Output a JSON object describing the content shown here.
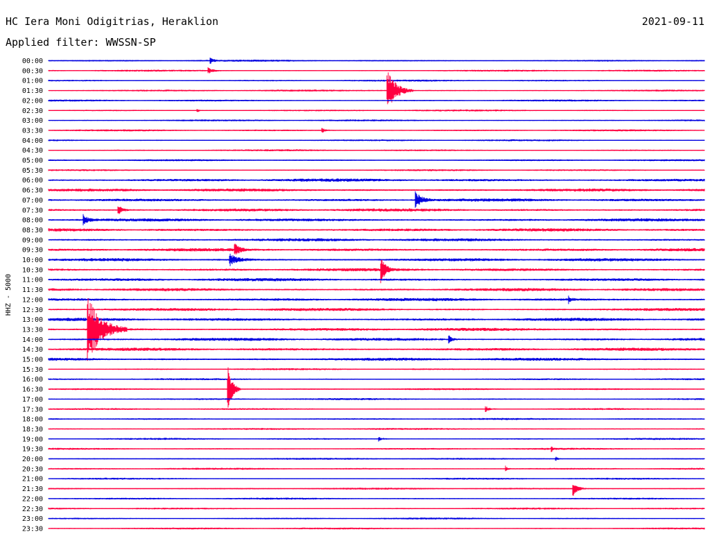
{
  "header": {
    "station": "HC Iera Moni Odigitrias, Heraklion",
    "date": "2021-09-11",
    "filter": "Applied filter: WWSSN-SP"
  },
  "colors": {
    "trace_even": "#0000e0",
    "trace_odd": "#ff0040",
    "background": "#ffffff",
    "text": "#000000"
  },
  "chart_data": {
    "type": "helicorder",
    "ylabel": "HHZ - 5000",
    "rows": [
      "00:00",
      "00:30",
      "01:00",
      "01:30",
      "02:00",
      "02:30",
      "03:00",
      "03:30",
      "04:00",
      "04:30",
      "05:00",
      "05:30",
      "06:00",
      "06:30",
      "07:00",
      "07:30",
      "08:00",
      "08:30",
      "09:00",
      "09:30",
      "10:00",
      "10:30",
      "11:00",
      "11:30",
      "12:00",
      "12:30",
      "13:00",
      "13:30",
      "14:00",
      "14:30",
      "15:00",
      "15:30",
      "16:00",
      "16:30",
      "17:00",
      "17:30",
      "18:00",
      "18:30",
      "19:00",
      "19:30",
      "20:00",
      "20:30",
      "21:00",
      "21:30",
      "22:00",
      "22:30",
      "23:00",
      "23:30"
    ],
    "row_minutes": 30,
    "events": [
      {
        "row": 0,
        "minute": 7.4,
        "amplitude": 4,
        "duration_min": 0.4
      },
      {
        "row": 1,
        "minute": 7.3,
        "amplitude": 4,
        "duration_min": 0.6
      },
      {
        "row": 3,
        "minute": 15.5,
        "amplitude": 30,
        "duration_min": 1.2
      },
      {
        "row": 5,
        "minute": 6.8,
        "amplitude": 3,
        "duration_min": 0.3
      },
      {
        "row": 7,
        "minute": 12.5,
        "amplitude": 4,
        "duration_min": 0.4
      },
      {
        "row": 14,
        "minute": 16.8,
        "amplitude": 12,
        "duration_min": 0.8
      },
      {
        "row": 15,
        "minute": 3.2,
        "amplitude": 7,
        "duration_min": 0.5
      },
      {
        "row": 16,
        "minute": 1.6,
        "amplitude": 7,
        "duration_min": 0.6
      },
      {
        "row": 19,
        "minute": 8.5,
        "amplitude": 9,
        "duration_min": 0.6
      },
      {
        "row": 20,
        "minute": 8.3,
        "amplitude": 8,
        "duration_min": 1.1
      },
      {
        "row": 21,
        "minute": 15.2,
        "amplitude": 18,
        "duration_min": 0.6
      },
      {
        "row": 24,
        "minute": 23.8,
        "amplitude": 5,
        "duration_min": 0.3
      },
      {
        "row": 27,
        "minute": 1.8,
        "amplitude": 48,
        "duration_min": 1.8
      },
      {
        "row": 28,
        "minute": 18.3,
        "amplitude": 6,
        "duration_min": 0.4
      },
      {
        "row": 33,
        "minute": 8.2,
        "amplitude": 36,
        "duration_min": 0.6
      },
      {
        "row": 35,
        "minute": 20.0,
        "amplitude": 4,
        "duration_min": 0.5
      },
      {
        "row": 38,
        "minute": 15.1,
        "amplitude": 3,
        "duration_min": 0.5
      },
      {
        "row": 39,
        "minute": 23.0,
        "amplitude": 4,
        "duration_min": 0.2
      },
      {
        "row": 40,
        "minute": 23.2,
        "amplitude": 3,
        "duration_min": 0.3
      },
      {
        "row": 41,
        "minute": 20.9,
        "amplitude": 4,
        "duration_min": 0.3
      },
      {
        "row": 43,
        "minute": 24.0,
        "amplitude": 10,
        "duration_min": 0.6
      }
    ]
  }
}
